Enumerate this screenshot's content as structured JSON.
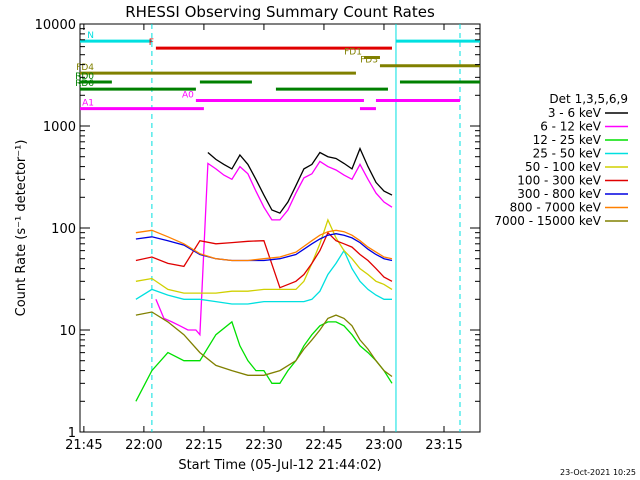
{
  "chart_data": {
    "type": "line",
    "title": "RHESSI Observing Summary Count Rates",
    "xlabel": "Start Time (05-Jul-12 21:44:02)",
    "ylabel": "Count Rate (s⁻¹ detector⁻¹)",
    "y_scale": "log",
    "ylim": [
      1,
      10000
    ],
    "xlim": [
      "21:44:02",
      "23:24"
    ],
    "x_ticks": [
      "21:45",
      "22:00",
      "22:15",
      "22:30",
      "22:45",
      "23:00",
      "23:15"
    ],
    "y_ticks": [
      "1",
      "10",
      "100",
      "1000",
      "10000"
    ],
    "legend": {
      "title": "Det 1,3,5,6,9",
      "placement": "right",
      "entries": [
        {
          "label": "3 - 6 keV",
          "color": "#000000"
        },
        {
          "label": "6 - 12 keV",
          "color": "#ff00ff"
        },
        {
          "label": "12 - 25 keV",
          "color": "#00e000"
        },
        {
          "label": "25 - 50 keV",
          "color": "#00e0e0"
        },
        {
          "label": "50 - 100 keV",
          "color": "#d0d000"
        },
        {
          "label": "100 - 300 keV",
          "color": "#e00000"
        },
        {
          "label": "300 - 800 keV",
          "color": "#0000e0"
        },
        {
          "label": "800 - 7000 keV",
          "color": "#ff8000"
        },
        {
          "label": "7000 - 15000 keV",
          "color": "#808000"
        }
      ]
    },
    "night_boundaries": [
      "22:02",
      "23:03",
      "23:19"
    ],
    "flag_bars": [
      {
        "label": "N",
        "color": "#00e0e0",
        "segments": [
          [
            "21:44",
            "22:02"
          ],
          [
            "23:03",
            "23:24"
          ]
        ],
        "y": 6800
      },
      {
        "label": "F",
        "color": "#e00000",
        "segments": [
          [
            "22:03",
            "23:02"
          ]
        ],
        "y": 5800
      },
      {
        "label": "FD1",
        "color": "#808000",
        "segments": [
          [
            "22:55",
            "22:59"
          ]
        ],
        "y": 4700
      },
      {
        "label": "FD3",
        "color": "#808000",
        "segments": [
          [
            "22:59",
            "23:24"
          ]
        ],
        "y": 3900
      },
      {
        "label": "FD4",
        "color": "#808000",
        "segments": [
          [
            "21:44",
            "22:53"
          ]
        ],
        "y": 3300
      },
      {
        "label": "RD0",
        "color": "#008000",
        "segments": [
          [
            "21:44",
            "21:52"
          ],
          [
            "22:14",
            "22:27"
          ],
          [
            "23:04",
            "23:24"
          ]
        ],
        "y": 2700
      },
      {
        "label": "RD6",
        "color": "#008000",
        "segments": [
          [
            "21:44",
            "22:13"
          ],
          [
            "22:33",
            "23:01"
          ]
        ],
        "y": 2300
      },
      {
        "label": "A0",
        "color": "#ff00ff",
        "segments": [
          [
            "22:13",
            "22:55"
          ],
          [
            "22:58",
            "23:19"
          ]
        ],
        "y": 1780
      },
      {
        "label": "A1",
        "color": "#ff00ff",
        "segments": [
          [
            "21:44",
            "22:15"
          ],
          [
            "22:54",
            "22:58"
          ]
        ],
        "y": 1480
      }
    ],
    "series": [
      {
        "name": "3 - 6 keV",
        "color": "#000000",
        "x": [
          "22:16",
          "22:18",
          "22:20",
          "22:22",
          "22:24",
          "22:26",
          "22:28",
          "22:30",
          "22:32",
          "22:34",
          "22:36",
          "22:38",
          "22:40",
          "22:42",
          "22:44",
          "22:46",
          "22:48",
          "22:50",
          "22:52",
          "22:54",
          "22:56",
          "22:58",
          "23:00",
          "23:02"
        ],
        "y": [
          550,
          470,
          420,
          380,
          520,
          420,
          300,
          210,
          150,
          140,
          180,
          260,
          380,
          420,
          550,
          500,
          480,
          430,
          380,
          600,
          400,
          280,
          230,
          210
        ]
      },
      {
        "name": "6 - 12 keV",
        "color": "#ff00ff",
        "x": [
          "22:03",
          "22:05",
          "22:07",
          "22:09",
          "22:11",
          "22:13",
          "22:14",
          "22:16",
          "22:18",
          "22:20",
          "22:22",
          "22:24",
          "22:26",
          "22:28",
          "22:30",
          "22:32",
          "22:34",
          "22:36",
          "22:38",
          "22:40",
          "22:42",
          "22:44",
          "22:46",
          "22:48",
          "22:50",
          "22:52",
          "22:54",
          "22:56",
          "22:58",
          "23:00",
          "23:02"
        ],
        "y": [
          20,
          13,
          12,
          11,
          10,
          10,
          9,
          430,
          380,
          330,
          300,
          400,
          340,
          230,
          160,
          120,
          120,
          150,
          220,
          310,
          340,
          450,
          400,
          370,
          330,
          300,
          420,
          300,
          220,
          180,
          160
        ]
      },
      {
        "name": "12 - 25 keV",
        "color": "#00e000",
        "x": [
          "21:58",
          "22:02",
          "22:06",
          "22:10",
          "22:14",
          "22:18",
          "22:22",
          "22:24",
          "22:26",
          "22:28",
          "22:30",
          "22:32",
          "22:34",
          "22:36",
          "22:38",
          "22:40",
          "22:42",
          "22:44",
          "22:46",
          "22:48",
          "22:50",
          "22:52",
          "22:54",
          "22:56",
          "22:58",
          "23:00",
          "23:02"
        ],
        "y": [
          2,
          4,
          6,
          5,
          5,
          9,
          12,
          7,
          5,
          4,
          4,
          3,
          3,
          4,
          5,
          7,
          9,
          11,
          12,
          12,
          11,
          9,
          7,
          6,
          5,
          4,
          3
        ]
      },
      {
        "name": "25 - 50 keV",
        "color": "#00e0e0",
        "x": [
          "21:58",
          "22:02",
          "22:06",
          "22:10",
          "22:14",
          "22:18",
          "22:22",
          "22:26",
          "22:30",
          "22:34",
          "22:38",
          "22:40",
          "22:42",
          "22:44",
          "22:46",
          "22:48",
          "22:50",
          "22:52",
          "22:54",
          "22:56",
          "22:58",
          "23:00",
          "23:02"
        ],
        "y": [
          20,
          25,
          22,
          20,
          20,
          19,
          18,
          18,
          19,
          19,
          19,
          19,
          20,
          24,
          35,
          45,
          60,
          40,
          30,
          25,
          22,
          20,
          20
        ]
      },
      {
        "name": "50 - 100 keV",
        "color": "#d0d000",
        "x": [
          "21:58",
          "22:02",
          "22:06",
          "22:10",
          "22:14",
          "22:18",
          "22:22",
          "22:26",
          "22:30",
          "22:34",
          "22:38",
          "22:40",
          "22:42",
          "22:44",
          "22:46",
          "22:48",
          "22:50",
          "22:52",
          "22:54",
          "22:56",
          "22:58",
          "23:00",
          "23:02"
        ],
        "y": [
          30,
          32,
          25,
          23,
          23,
          23,
          24,
          24,
          25,
          25,
          25,
          30,
          45,
          70,
          120,
          80,
          60,
          50,
          40,
          35,
          30,
          28,
          25
        ]
      },
      {
        "name": "100 - 300 keV",
        "color": "#e00000",
        "x": [
          "21:58",
          "22:02",
          "22:06",
          "22:10",
          "22:14",
          "22:18",
          "22:22",
          "22:26",
          "22:30",
          "22:34",
          "22:38",
          "22:40",
          "22:42",
          "22:44",
          "22:46",
          "22:48",
          "22:50",
          "22:52",
          "22:54",
          "22:56",
          "22:58",
          "23:00",
          "23:02"
        ],
        "y": [
          48,
          52,
          45,
          42,
          75,
          70,
          72,
          74,
          75,
          26,
          30,
          35,
          45,
          60,
          90,
          75,
          70,
          65,
          55,
          48,
          40,
          33,
          30
        ]
      },
      {
        "name": "300 - 800 keV",
        "color": "#0000e0",
        "x": [
          "21:58",
          "22:02",
          "22:06",
          "22:10",
          "22:14",
          "22:18",
          "22:22",
          "22:26",
          "22:30",
          "22:34",
          "22:38",
          "22:40",
          "22:42",
          "22:44",
          "22:46",
          "22:48",
          "22:50",
          "22:52",
          "22:54",
          "22:56",
          "22:58",
          "23:00",
          "23:02"
        ],
        "y": [
          78,
          82,
          75,
          68,
          55,
          50,
          48,
          48,
          48,
          50,
          55,
          62,
          70,
          78,
          85,
          88,
          85,
          80,
          72,
          62,
          55,
          50,
          48
        ]
      },
      {
        "name": "800 - 7000 keV",
        "color": "#ff8000",
        "x": [
          "21:58",
          "22:02",
          "22:06",
          "22:10",
          "22:14",
          "22:18",
          "22:22",
          "22:26",
          "22:30",
          "22:34",
          "22:38",
          "22:40",
          "22:42",
          "22:44",
          "22:46",
          "22:48",
          "22:50",
          "22:52",
          "22:54",
          "22:56",
          "22:58",
          "23:00",
          "23:02"
        ],
        "y": [
          90,
          95,
          82,
          70,
          56,
          50,
          48,
          48,
          50,
          52,
          58,
          66,
          75,
          85,
          92,
          95,
          92,
          85,
          75,
          65,
          58,
          52,
          50
        ]
      },
      {
        "name": "7000 - 15000 keV",
        "color": "#808000",
        "x": [
          "21:58",
          "22:02",
          "22:06",
          "22:10",
          "22:14",
          "22:18",
          "22:22",
          "22:26",
          "22:30",
          "22:34",
          "22:38",
          "22:40",
          "22:42",
          "22:44",
          "22:46",
          "22:48",
          "22:50",
          "22:52",
          "22:54",
          "22:56",
          "22:58",
          "23:00",
          "23:02"
        ],
        "y": [
          14,
          15,
          12,
          9,
          6,
          4.5,
          4,
          3.6,
          3.6,
          4,
          5,
          6.5,
          8,
          10,
          13,
          14,
          13,
          11,
          8,
          6.5,
          5,
          4,
          3.5
        ]
      }
    ]
  },
  "timestamp": "23-Oct-2021 10:25"
}
